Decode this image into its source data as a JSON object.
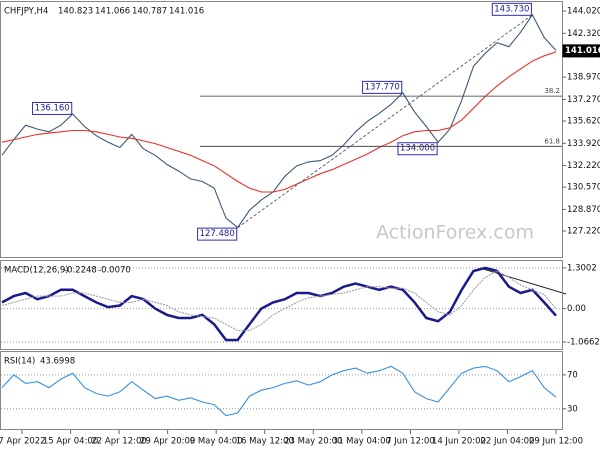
{
  "chart_data": [
    {
      "type": "line",
      "title": "CHFJPY,H4",
      "last_bar": {
        "open": 140.823,
        "high": 141.066,
        "low": 140.787
      },
      "ylim": [
        125.16,
        144.71
      ],
      "yticks": [
        {
          "value": 144.02,
          "label": "144.020"
        },
        {
          "value": 142.32,
          "label": "142.320"
        },
        {
          "value": 140.67,
          "label": "140.670"
        },
        {
          "value": 138.97,
          "label": "138.970"
        },
        {
          "value": 137.27,
          "label": "137.270"
        },
        {
          "value": 135.62,
          "label": "135.620"
        },
        {
          "value": 133.92,
          "label": "133.920"
        },
        {
          "value": 132.22,
          "label": "132.220"
        },
        {
          "value": 130.57,
          "label": "130.570"
        },
        {
          "value": 128.87,
          "label": "128.870"
        },
        {
          "value": 127.22,
          "label": "127.220"
        }
      ],
      "series": [
        {
          "color": "#3c5a78",
          "values": [
            133.0,
            134.2,
            135.3,
            135.0,
            134.8,
            135.3,
            136.16,
            135.2,
            134.5,
            134.0,
            133.6,
            134.6,
            133.5,
            133.0,
            132.3,
            131.8,
            131.2,
            131.0,
            130.5,
            128.2,
            127.48,
            128.8,
            129.6,
            130.2,
            131.4,
            132.2,
            132.5,
            132.6,
            133.0,
            133.8,
            134.8,
            135.6,
            136.2,
            136.9,
            137.77,
            136.3,
            135.2,
            134.0,
            135.0,
            137.2,
            139.8,
            140.8,
            141.6,
            141.3,
            142.4,
            143.73,
            142.0,
            141.016
          ],
          "value_labels": [
            null,
            null,
            null,
            null,
            null,
            null,
            "136.160",
            null,
            null,
            null,
            null,
            null,
            null,
            null,
            null,
            null,
            null,
            null,
            null,
            null,
            "127.480",
            null,
            null,
            null,
            null,
            null,
            null,
            null,
            null,
            null,
            null,
            null,
            null,
            null,
            "137.770",
            null,
            null,
            "134.000",
            null,
            null,
            null,
            null,
            null,
            null,
            null,
            "143.730",
            null,
            "141.016"
          ]
        },
        {
          "color": "#e8302a",
          "values": [
            134.0,
            134.2,
            134.4,
            134.6,
            134.7,
            134.8,
            134.9,
            134.9,
            134.8,
            134.6,
            134.4,
            134.3,
            134.1,
            133.9,
            133.6,
            133.3,
            133.0,
            132.6,
            132.2,
            131.6,
            131.0,
            130.5,
            130.2,
            130.2,
            130.4,
            130.8,
            131.2,
            131.6,
            131.9,
            132.3,
            132.7,
            133.1,
            133.6,
            134.0,
            134.5,
            134.8,
            134.9,
            134.9,
            135.1,
            135.7,
            136.6,
            137.5,
            138.3,
            139.0,
            139.6,
            140.2,
            140.6,
            140.9
          ]
        }
      ],
      "fibonacci": [
        {
          "level": 38.2,
          "price": 137.52
        },
        {
          "level": 61.8,
          "price": 133.69
        }
      ],
      "watermark": "ActionForex.com",
      "xtick_labels": [
        "7 Apr 2022",
        "15 Apr 04:00",
        "22 Apr 12:00",
        "29 Apr 20:00",
        "9 May 04:00",
        "16 May 12:00",
        "23 May 20:00",
        "31 May 04:00",
        "7 Jun 12:00",
        "14 Jun 20:00",
        "22 Jun 04:00",
        "29 Jun 12:00"
      ]
    },
    {
      "type": "line",
      "title": "MACD(12,26,9)",
      "grid": true,
      "ylim": [
        -1.32,
        1.52
      ],
      "yticks": [
        1.3002,
        {
          "value": 0,
          "label": "0.00"
        },
        -1.0662
      ],
      "series": [
        {
          "color": "#1a1a8c",
          "values": [
            0.2,
            0.4,
            0.5,
            0.3,
            0.4,
            0.6,
            0.6,
            0.4,
            0.2,
            0.05,
            0.1,
            0.4,
            0.3,
            0.0,
            -0.2,
            -0.3,
            -0.3,
            -0.2,
            -0.5,
            -1.0,
            -1.0,
            -0.5,
            0.0,
            0.2,
            0.3,
            0.5,
            0.5,
            0.4,
            0.5,
            0.7,
            0.8,
            0.7,
            0.6,
            0.7,
            0.6,
            0.2,
            -0.3,
            -0.4,
            -0.1,
            0.6,
            1.2,
            1.3,
            1.2,
            0.7,
            0.5,
            0.6,
            0.2,
            -0.2248
          ]
        },
        {
          "color": "#a0a0a0",
          "values": [
            0.1,
            0.2,
            0.3,
            0.4,
            0.4,
            0.4,
            0.5,
            0.5,
            0.4,
            0.3,
            0.2,
            0.2,
            0.3,
            0.2,
            0.1,
            -0.1,
            -0.2,
            -0.25,
            -0.3,
            -0.5,
            -0.7,
            -0.7,
            -0.5,
            -0.2,
            0.0,
            0.2,
            0.35,
            0.4,
            0.45,
            0.5,
            0.6,
            0.7,
            0.7,
            0.65,
            0.65,
            0.5,
            0.2,
            -0.1,
            -0.2,
            0.1,
            0.6,
            1.0,
            1.2,
            1.0,
            0.75,
            0.6,
            0.45,
            -0.007
          ],
          "value_labels": [
            null,
            null,
            null,
            null,
            null,
            null,
            null,
            null,
            null,
            null,
            null,
            null,
            null,
            null,
            null,
            null,
            null,
            null,
            null,
            null,
            null,
            null,
            null,
            null,
            null,
            null,
            null,
            null,
            null,
            null,
            null,
            null,
            null,
            null,
            null,
            null,
            null,
            null,
            null,
            null,
            null,
            null,
            null,
            null,
            null,
            null,
            null,
            "-0.0070"
          ]
        }
      ]
    },
    {
      "type": "line",
      "title": "RSI(14)",
      "grid": true,
      "ylim": [
        5,
        97
      ],
      "yticks": [
        70,
        30
      ],
      "series": [
        {
          "color": "#3a8fe0",
          "values": [
            55,
            70,
            60,
            62,
            55,
            65,
            72,
            55,
            48,
            45,
            50,
            62,
            52,
            42,
            45,
            40,
            43,
            38,
            35,
            22,
            25,
            45,
            52,
            55,
            60,
            63,
            58,
            62,
            70,
            75,
            78,
            72,
            75,
            80,
            72,
            50,
            42,
            38,
            55,
            72,
            78,
            80,
            75,
            62,
            68,
            75,
            55,
            43.6998
          ]
        }
      ]
    }
  ]
}
